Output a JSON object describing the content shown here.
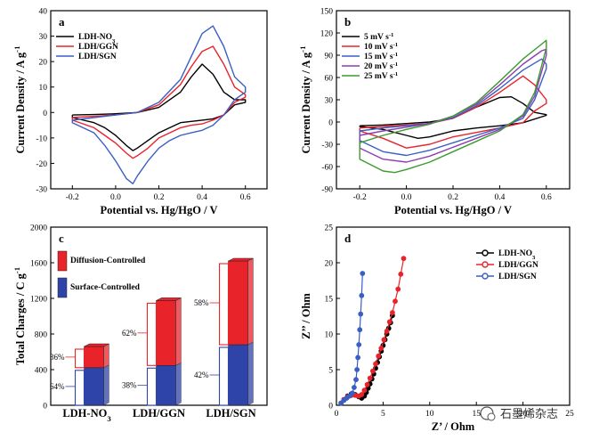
{
  "watermark": "石墨烯杂志",
  "chart_data": [
    {
      "id": "a",
      "type": "line",
      "panel_label": "a",
      "xlabel": "Potential vs. Hg/HgO / V",
      "ylabel": "Current Density / A g",
      "ylabel_sup": "-1",
      "xlim": [
        -0.3,
        0.7
      ],
      "ylim": [
        -30,
        40
      ],
      "xticks": [
        -0.2,
        0.0,
        0.2,
        0.4,
        0.6
      ],
      "xtick_labels": [
        "-0.2",
        "0.0",
        "0.2",
        "0.4",
        "0.6"
      ],
      "yticks": [
        -30,
        -20,
        -10,
        0,
        10,
        20,
        30,
        40
      ],
      "ytick_labels": [
        "-30",
        "-20",
        "-10",
        "0",
        "10",
        "20",
        "30",
        "40"
      ],
      "legend_position": "top-left",
      "series": [
        {
          "name": "LDH-NO",
          "name_sub": "3",
          "color": "#000000",
          "x": [
            -0.2,
            -0.1,
            0.0,
            0.1,
            0.2,
            0.3,
            0.35,
            0.4,
            0.45,
            0.5,
            0.55,
            0.6,
            0.6,
            0.55,
            0.5,
            0.45,
            0.4,
            0.35,
            0.3,
            0.25,
            0.2,
            0.15,
            0.1,
            0.08,
            0.05,
            0.0,
            -0.05,
            -0.1,
            -0.2
          ],
          "y": [
            -1,
            -0.8,
            -0.5,
            0,
            2,
            8,
            14,
            19,
            15,
            8,
            5,
            5,
            4,
            3,
            -1,
            -2.5,
            -3,
            -3.5,
            -4,
            -6,
            -8,
            -11,
            -14,
            -15,
            -13,
            -9,
            -6,
            -4,
            -2
          ]
        },
        {
          "name": "LDH/GGN",
          "color": "#e8232a",
          "x": [
            -0.2,
            -0.1,
            0.0,
            0.1,
            0.2,
            0.3,
            0.35,
            0.4,
            0.45,
            0.5,
            0.55,
            0.6,
            0.6,
            0.55,
            0.5,
            0.45,
            0.4,
            0.35,
            0.3,
            0.25,
            0.2,
            0.15,
            0.1,
            0.08,
            0.05,
            0.0,
            -0.05,
            -0.1,
            -0.2
          ],
          "y": [
            -2,
            -1.5,
            -1,
            0,
            3,
            11,
            18,
            24,
            26,
            19,
            10,
            7,
            6,
            4,
            -1,
            -3,
            -4.5,
            -5,
            -6,
            -8,
            -10,
            -14,
            -17,
            -18,
            -16,
            -12,
            -9,
            -6,
            -3
          ]
        },
        {
          "name": "LDH/SGN",
          "color": "#3a5fc4",
          "x": [
            -0.2,
            -0.1,
            0.0,
            0.1,
            0.2,
            0.3,
            0.35,
            0.4,
            0.45,
            0.5,
            0.55,
            0.6,
            0.6,
            0.55,
            0.5,
            0.45,
            0.4,
            0.35,
            0.3,
            0.25,
            0.2,
            0.15,
            0.1,
            0.08,
            0.05,
            0.0,
            -0.05,
            -0.1,
            -0.2
          ],
          "y": [
            -3,
            -2,
            -1,
            0,
            4,
            13,
            22,
            31,
            34,
            26,
            14,
            10,
            8,
            5,
            -1,
            -5,
            -7,
            -8,
            -9,
            -11,
            -14,
            -19,
            -25,
            -28,
            -26,
            -19,
            -13,
            -8,
            -4
          ]
        }
      ]
    },
    {
      "id": "b",
      "type": "line",
      "panel_label": "b",
      "xlabel": "Potential vs. Hg/HgO / V",
      "ylabel": "Current Density / A g",
      "ylabel_sup": "-1",
      "xlim": [
        -0.3,
        0.7
      ],
      "ylim": [
        -90,
        150
      ],
      "xticks": [
        -0.2,
        0.0,
        0.2,
        0.4,
        0.6
      ],
      "xtick_labels": [
        "-0.2",
        "0.0",
        "0.2",
        "0.4",
        "0.6"
      ],
      "yticks": [
        -90,
        -60,
        -30,
        0,
        30,
        60,
        90,
        120,
        150
      ],
      "ytick_labels": [
        "-90",
        "-60",
        "-30",
        "0",
        "30",
        "60",
        "90",
        "120",
        "150"
      ],
      "legend_position": "top-left",
      "series": [
        {
          "name": "5 mV s",
          "name_sup": "-1",
          "color": "#000000",
          "x": [
            -0.2,
            -0.1,
            0.0,
            0.1,
            0.2,
            0.3,
            0.4,
            0.45,
            0.5,
            0.55,
            0.6,
            0.6,
            0.5,
            0.4,
            0.3,
            0.2,
            0.1,
            0.05,
            0.0,
            -0.1,
            -0.2
          ],
          "y": [
            -5,
            -4,
            -2,
            0,
            5,
            20,
            33,
            34,
            25,
            13,
            10,
            9,
            -1,
            -5,
            -8,
            -12,
            -20,
            -22,
            -18,
            -10,
            -6
          ]
        },
        {
          "name": "10 mV s",
          "name_sup": "-1",
          "color": "#e8232a",
          "x": [
            -0.2,
            -0.1,
            0.0,
            0.1,
            0.2,
            0.3,
            0.4,
            0.5,
            0.55,
            0.6,
            0.6,
            0.55,
            0.5,
            0.4,
            0.3,
            0.2,
            0.1,
            0.0,
            -0.1,
            -0.2
          ],
          "y": [
            -8,
            -6,
            -4,
            -2,
            5,
            20,
            40,
            62,
            50,
            30,
            25,
            15,
            -1,
            -8,
            -14,
            -20,
            -30,
            -35,
            -22,
            -12
          ]
        },
        {
          "name": "15 mV s",
          "name_sup": "-1",
          "color": "#3a5fc4",
          "x": [
            -0.2,
            -0.1,
            0.0,
            0.1,
            0.2,
            0.3,
            0.4,
            0.5,
            0.58,
            0.6,
            0.6,
            0.55,
            0.5,
            0.4,
            0.3,
            0.2,
            0.1,
            0.0,
            -0.1,
            -0.2
          ],
          "y": [
            -12,
            -8,
            -5,
            -2,
            6,
            22,
            45,
            70,
            85,
            78,
            72,
            30,
            5,
            -8,
            -18,
            -28,
            -38,
            -45,
            -40,
            -25
          ]
        },
        {
          "name": "20 mV s",
          "name_sup": "-1",
          "color": "#8c3fb0",
          "x": [
            -0.2,
            -0.1,
            0.0,
            0.1,
            0.2,
            0.3,
            0.4,
            0.5,
            0.58,
            0.6,
            0.6,
            0.55,
            0.5,
            0.4,
            0.3,
            0.2,
            0.1,
            0.0,
            -0.1,
            -0.2
          ],
          "y": [
            -18,
            -12,
            -7,
            -2,
            8,
            24,
            50,
            78,
            96,
            98,
            90,
            35,
            8,
            -10,
            -22,
            -34,
            -46,
            -54,
            -50,
            -35
          ]
        },
        {
          "name": "25 mV s",
          "name_sup": "-1",
          "color": "#3c9a2e",
          "x": [
            -0.2,
            -0.1,
            0.0,
            0.1,
            0.2,
            0.3,
            0.4,
            0.5,
            0.58,
            0.6,
            0.6,
            0.55,
            0.5,
            0.4,
            0.3,
            0.2,
            0.1,
            0.0,
            -0.05,
            -0.1,
            -0.2
          ],
          "y": [
            -28,
            -18,
            -10,
            -3,
            8,
            26,
            55,
            85,
            105,
            110,
            100,
            40,
            10,
            -12,
            -26,
            -40,
            -54,
            -64,
            -68,
            -66,
            -50
          ]
        }
      ]
    },
    {
      "id": "c",
      "type": "bar",
      "panel_label": "c",
      "stacked": true,
      "xlabel": "",
      "ylabel": "Total Charges / C g",
      "ylabel_sup": "-1",
      "ylim": [
        0,
        2000
      ],
      "yticks": [
        0,
        400,
        800,
        1200,
        1600,
        2000
      ],
      "ytick_labels": [
        "0",
        "400",
        "800",
        "1200",
        "1600",
        "2000"
      ],
      "categories": [
        "LDH-NO",
        "LDH/GGN",
        "LDH/SGN"
      ],
      "category_subs": [
        "3",
        "",
        ""
      ],
      "legend_position": "top-left",
      "series": [
        {
          "name": "Surface-Controlled",
          "color": "#2f44a8",
          "values": [
            422,
            447,
            680
          ],
          "percent_labels": [
            "64%",
            "38%",
            "42%"
          ]
        },
        {
          "name": "Diffusion-Controlled",
          "color": "#e8232a",
          "values": [
            238,
            729,
            940
          ],
          "percent_labels": [
            "36%",
            "62%",
            "58%"
          ]
        }
      ]
    },
    {
      "id": "d",
      "type": "scatter",
      "panel_label": "d",
      "xlabel": "Z’ / Ohm",
      "ylabel": "Z’’ / Ohm",
      "xlim": [
        0,
        25
      ],
      "ylim": [
        0,
        25
      ],
      "xticks": [
        0,
        5,
        10,
        15,
        20,
        25
      ],
      "xtick_labels": [
        "0",
        "5",
        "10",
        "15",
        "20",
        "25"
      ],
      "yticks": [
        0,
        5,
        10,
        15,
        20,
        25
      ],
      "ytick_labels": [
        "0",
        "5",
        "10",
        "15",
        "20",
        "25"
      ],
      "legend_position": "top-right",
      "series": [
        {
          "name": "LDH-NO",
          "name_sub": "3",
          "color": "#000000",
          "x": [
            0.5,
            0.8,
            1.2,
            1.6,
            2.0,
            2.4,
            2.7,
            3.0,
            3.2,
            3.4,
            3.6,
            3.8,
            4.0,
            4.2,
            4.4,
            4.6,
            4.8,
            5.0,
            5.2,
            5.4,
            5.6,
            5.8,
            6.0
          ],
          "y": [
            0.3,
            0.8,
            1.3,
            1.6,
            1.5,
            1.2,
            1.0,
            1.3,
            1.8,
            2.4,
            3.0,
            3.7,
            4.4,
            5.2,
            6.0,
            6.8,
            7.6,
            8.4,
            9.2,
            10.0,
            10.8,
            11.6,
            12.6
          ]
        },
        {
          "name": "LDH/GGN",
          "color": "#e8232a",
          "x": [
            0.5,
            0.8,
            1.2,
            1.6,
            2.0,
            2.4,
            2.7,
            3.0,
            3.3,
            3.6,
            3.9,
            4.2,
            4.5,
            4.8,
            5.1,
            5.4,
            5.7,
            6.0,
            6.3,
            6.6,
            6.9,
            7.2
          ],
          "y": [
            0.3,
            0.8,
            1.2,
            1.4,
            1.4,
            1.3,
            1.5,
            2.1,
            2.9,
            3.8,
            4.8,
            5.8,
            6.9,
            8.0,
            9.2,
            10.4,
            11.7,
            13.0,
            14.6,
            16.3,
            18.4,
            20.6
          ]
        },
        {
          "name": "LDH/SGN",
          "color": "#3a5fc4",
          "x": [
            0.5,
            0.8,
            1.1,
            1.4,
            1.7,
            1.9,
            2.1,
            2.2,
            2.3,
            2.4,
            2.5,
            2.6,
            2.7,
            2.8
          ],
          "y": [
            0.3,
            0.7,
            1.0,
            1.3,
            1.7,
            2.5,
            3.6,
            5.0,
            6.7,
            8.5,
            10.6,
            12.8,
            15.4,
            18.5
          ]
        }
      ]
    }
  ]
}
